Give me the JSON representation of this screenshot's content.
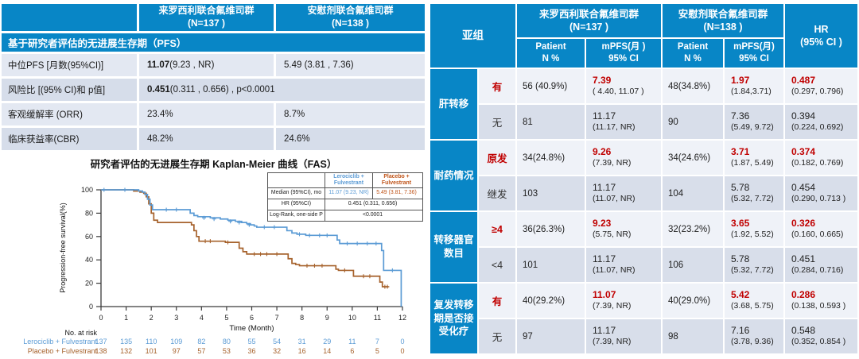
{
  "colors": {
    "header_blue": "#0886C6",
    "red_accent": "#C00000",
    "left_row_light": "#E3E8F2",
    "left_row_dark": "#D6DDEA",
    "right_row_light": "#EFF2F8",
    "right_row_dark": "#D8DEEA",
    "lerociclib_blue": "#5B9BD5",
    "placebo_brown": "#A6622C",
    "legend_orange": "#C0551A"
  },
  "left_table": {
    "arm1": {
      "name": "来罗西利联合氟维司群",
      "n": "(N=137 )"
    },
    "arm2": {
      "name": "安慰剂联合氟维司群",
      "n": "(N=138 )"
    },
    "section_header": "基于研究者评估的无进展生存期（PFS）",
    "rows": [
      {
        "label": "中位PFS [月数(95%CI)]",
        "v1": {
          "bold": "11.07",
          "rest": " (9.23 , NR)"
        },
        "v2": {
          "rest": "5.49 (3.81 , 7.36)"
        }
      },
      {
        "label": "风险比 [(95% CI)和 p值]",
        "span": {
          "bold": "0.451",
          "rest": " (0.311 , 0.656) , p<0.0001"
        }
      },
      {
        "label": "客观缓解率 (ORR)",
        "v1": {
          "rest": "23.4%"
        },
        "v2": {
          "rest": "8.7%"
        }
      },
      {
        "label": "临床获益率(CBR)",
        "v1": {
          "rest": "48.2%"
        },
        "v2": {
          "rest": "24.6%"
        }
      }
    ]
  },
  "km": {
    "title": "研究者评估的无进展生存期 Kaplan-Meier 曲线（FAS）",
    "legend_table": {
      "arm1": {
        "l1": "Lerociclib +",
        "l2": "Fulvestrant"
      },
      "arm2": {
        "l1": "Placebo +",
        "l2": "Fulvestrant"
      },
      "rows": [
        {
          "label": "Median (95%CI), mo",
          "v1": "11.07 (9.23, NR)",
          "v2": "5.49 (3.81, 7.36)"
        },
        {
          "label": "HR (95%CI)",
          "span": "0.451  (0.311, 0.656)"
        },
        {
          "label": "Log-Rank, one-side P",
          "span": "<0.0001"
        }
      ]
    },
    "chart_data": {
      "type": "line",
      "title": "研究者评估的无进展生存期 Kaplan-Meier 曲线（FAS）",
      "xlabel": "Time (Month)",
      "ylabel": "Progression-free survival(%)",
      "xlim": [
        0,
        12
      ],
      "ylim": [
        0,
        100
      ],
      "xticks": [
        0,
        1,
        2,
        3,
        4,
        5,
        6,
        7,
        8,
        9,
        10,
        11,
        12
      ],
      "yticks": [
        0,
        20,
        40,
        60,
        80,
        100
      ],
      "risk_label": "No. at risk",
      "series": [
        {
          "name": "Lerociclib + Fulvestrant",
          "color": "#5B9BD5",
          "steps": [
            [
              0,
              100
            ],
            [
              1.35,
              100
            ],
            [
              1.5,
              99
            ],
            [
              1.65,
              98
            ],
            [
              1.75,
              96
            ],
            [
              1.85,
              92
            ],
            [
              1.95,
              87
            ],
            [
              2.05,
              83
            ],
            [
              3.45,
              83
            ],
            [
              3.55,
              80
            ],
            [
              3.7,
              78
            ],
            [
              3.85,
              77
            ],
            [
              4.35,
              76
            ],
            [
              4.75,
              75
            ],
            [
              5.05,
              74
            ],
            [
              5.35,
              73
            ],
            [
              5.6,
              72
            ],
            [
              5.8,
              71
            ],
            [
              5.95,
              70
            ],
            [
              6.1,
              69
            ],
            [
              6.2,
              68
            ],
            [
              7.25,
              68
            ],
            [
              7.4,
              65
            ],
            [
              7.6,
              63
            ],
            [
              7.8,
              62
            ],
            [
              8.15,
              61
            ],
            [
              9.3,
              61
            ],
            [
              9.4,
              57
            ],
            [
              9.5,
              54
            ],
            [
              11.1,
              54
            ],
            [
              11.17,
              48
            ],
            [
              11.25,
              31
            ],
            [
              11.9,
              31
            ],
            [
              11.95,
              0
            ]
          ],
          "censors": [
            [
              0.12,
              100
            ],
            [
              0.95,
              100
            ],
            [
              2.6,
              83
            ],
            [
              3.0,
              83
            ],
            [
              4.1,
              76
            ],
            [
              4.5,
              75
            ],
            [
              5.15,
              73
            ],
            [
              5.5,
              72
            ],
            [
              5.9,
              70
            ],
            [
              6.5,
              68
            ],
            [
              6.9,
              68
            ],
            [
              7.9,
              62
            ],
            [
              8.3,
              61
            ],
            [
              8.7,
              61
            ],
            [
              9.0,
              61
            ],
            [
              9.8,
              54
            ],
            [
              10.2,
              54
            ],
            [
              10.6,
              54
            ],
            [
              10.95,
              54
            ],
            [
              11.6,
              31
            ]
          ],
          "risk": [
            137,
            135,
            110,
            109,
            82,
            80,
            55,
            54,
            31,
            29,
            11,
            7,
            0
          ]
        },
        {
          "name": "Placebo + Fulvestrant",
          "color": "#A6622C",
          "steps": [
            [
              0,
              100
            ],
            [
              1.15,
              100
            ],
            [
              1.3,
              99
            ],
            [
              1.55,
              98
            ],
            [
              1.7,
              97
            ],
            [
              1.8,
              94
            ],
            [
              1.9,
              88
            ],
            [
              2.0,
              80
            ],
            [
              2.1,
              74
            ],
            [
              2.25,
              72
            ],
            [
              3.5,
              72
            ],
            [
              3.6,
              70
            ],
            [
              3.7,
              65
            ],
            [
              3.8,
              60
            ],
            [
              3.9,
              56
            ],
            [
              4.85,
              56
            ],
            [
              4.95,
              55
            ],
            [
              5.35,
              55
            ],
            [
              5.5,
              50
            ],
            [
              5.65,
              47
            ],
            [
              5.8,
              45
            ],
            [
              7.3,
              45
            ],
            [
              7.45,
              41
            ],
            [
              7.6,
              37
            ],
            [
              7.75,
              36
            ],
            [
              7.9,
              35
            ],
            [
              9.25,
              35
            ],
            [
              9.35,
              32
            ],
            [
              9.45,
              31
            ],
            [
              9.95,
              31
            ],
            [
              10.05,
              26
            ],
            [
              11.0,
              26
            ],
            [
              11.1,
              21
            ],
            [
              11.2,
              17
            ],
            [
              11.45,
              17
            ]
          ],
          "censors": [
            [
              4.15,
              56
            ],
            [
              4.35,
              56
            ],
            [
              5.05,
              55
            ],
            [
              6.1,
              45
            ],
            [
              6.35,
              45
            ],
            [
              6.6,
              45
            ],
            [
              7.0,
              45
            ],
            [
              8.2,
              35
            ],
            [
              8.5,
              35
            ],
            [
              8.8,
              35
            ],
            [
              9.7,
              31
            ],
            [
              10.45,
              26
            ],
            [
              10.7,
              26
            ],
            [
              11.3,
              17
            ],
            [
              11.4,
              17
            ]
          ],
          "risk": [
            138,
            132,
            101,
            97,
            57,
            53,
            36,
            32,
            16,
            14,
            6,
            5,
            0
          ]
        }
      ]
    }
  },
  "right_table": {
    "subgroup_label": "亚组",
    "arm1": {
      "name": "来罗西利联合氟维司群",
      "n": "(N=137 )"
    },
    "arm2": {
      "name": "安慰剂联合氟维司群",
      "n": "(N=138 )"
    },
    "hr": {
      "l1": "HR",
      "l2": "(95% CI )"
    },
    "subheads": [
      {
        "l1": "Patient",
        "l2": "N %"
      },
      {
        "l1": "mPFS(月 )",
        "l2": "95% CI"
      },
      {
        "l1": "Patient",
        "l2": "N %"
      },
      {
        "l1": "mPFS(月)",
        "l2": "95% CI"
      }
    ],
    "groups": [
      {
        "category": "肝转移",
        "rows": [
          {
            "label": "有",
            "hl": true,
            "p1": "56 (40.9%)",
            "m1": "7.39",
            "m1ci": "( 4.40, 11.07 )",
            "p2": "48(34.8%)",
            "m2": "1.97",
            "m2ci": "(1.84,3.71)",
            "hr": "0.487",
            "hrci": "(0.297, 0.796)"
          },
          {
            "label": "无",
            "hl": false,
            "p1": "81",
            "m1": "11.17",
            "m1ci": "(11.17, NR)",
            "p2": "90",
            "m2": "7.36",
            "m2ci": "(5.49, 9.72)",
            "hr": "0.394",
            "hrci": "(0.224, 0.692)"
          }
        ]
      },
      {
        "category": "耐药情况",
        "rows": [
          {
            "label": "原发",
            "hl": true,
            "p1": "34(24.8%)",
            "m1": "9.26",
            "m1ci": "(7.39, NR)",
            "p2": "34(24.6%)",
            "m2": "3.71",
            "m2ci": "(1.87, 5.49)",
            "hr": "0.374",
            "hrci": "(0.182, 0.769)"
          },
          {
            "label": "继发",
            "hl": false,
            "p1": "103",
            "m1": "11.17",
            "m1ci": "(11.07, NR)",
            "p2": "104",
            "m2": "5.78",
            "m2ci": "(5.32, 7.72)",
            "hr": "0.454",
            "hrci": "(0.290, 0.713 )"
          }
        ]
      },
      {
        "category": "转移器官数目",
        "rows": [
          {
            "label": "≥4",
            "hl": true,
            "p1": "36(26.3%)",
            "m1": "9.23",
            "m1ci": "(5.75, NR)",
            "p2": "32(23.2%)",
            "m2": "3.65",
            "m2ci": "(1.92, 5.52)",
            "hr": "0.326",
            "hrci": "(0.160, 0.665)"
          },
          {
            "label": "<4",
            "hl": false,
            "p1": "101",
            "m1": "11.17",
            "m1ci": "(11.07, NR)",
            "p2": "106",
            "m2": "5.78",
            "m2ci": "(5.32, 7.72)",
            "hr": "0.451",
            "hrci": "(0.284, 0.716)"
          }
        ]
      },
      {
        "category": "复发转移期是否接受化疗",
        "rows": [
          {
            "label": "有",
            "hl": true,
            "p1": "40(29.2%)",
            "m1": "11.07",
            "m1ci": "(7.39, NR)",
            "p2": "40(29.0%)",
            "m2": "5.42",
            "m2ci": "(3.68, 5.75)",
            "hr": "0.286",
            "hrci": "(0.138, 0.593 )"
          },
          {
            "label": "无",
            "hl": false,
            "p1": "97",
            "m1": "11.17",
            "m1ci": "(7.39, NR)",
            "p2": "98",
            "m2": "7.16",
            "m2ci": "(3.78, 9.36)",
            "hr": "0.548",
            "hrci": "(0.352, 0.854 )"
          }
        ]
      }
    ]
  }
}
